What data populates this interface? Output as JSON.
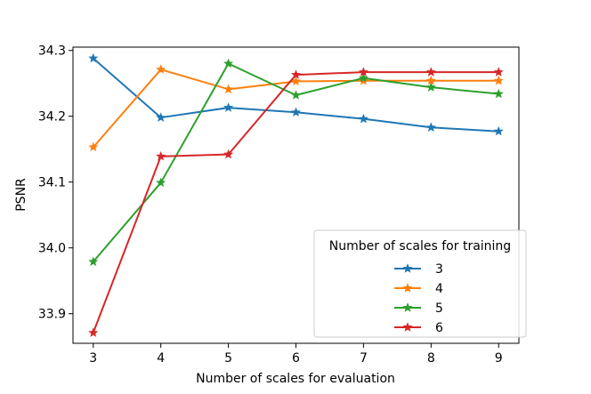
{
  "chart_data": {
    "type": "line",
    "title": "",
    "xlabel": "Number of scales for evaluation",
    "ylabel": "PSNR",
    "x": [
      3,
      4,
      5,
      6,
      7,
      8,
      9
    ],
    "xticks": [
      "3",
      "4",
      "5",
      "6",
      "7",
      "8",
      "9"
    ],
    "yticks": [
      33.9,
      34.0,
      34.1,
      34.2,
      34.3
    ],
    "ytick_labels": [
      "33.9",
      "34.0",
      "34.1",
      "34.2",
      "34.3"
    ],
    "xlim": [
      2.7,
      9.3
    ],
    "ylim": [
      33.855,
      34.305
    ],
    "grid": false,
    "marker": "star",
    "legend": {
      "title": "Number of scales for training",
      "placement": "lower-right"
    },
    "series": [
      {
        "name": "3",
        "color": "#1f77b4",
        "values": [
          34.288,
          34.198,
          34.213,
          34.206,
          34.196,
          34.183,
          34.177
        ]
      },
      {
        "name": "4",
        "color": "#ff7f0e",
        "values": [
          34.153,
          34.271,
          34.241,
          34.253,
          34.254,
          34.254,
          34.254
        ]
      },
      {
        "name": "5",
        "color": "#2ca02c",
        "values": [
          33.979,
          34.099,
          34.28,
          34.232,
          34.258,
          34.244,
          34.234
        ]
      },
      {
        "name": "6",
        "color": "#d62728",
        "values": [
          33.871,
          34.139,
          34.142,
          34.263,
          34.267,
          34.267,
          34.267
        ]
      }
    ]
  }
}
